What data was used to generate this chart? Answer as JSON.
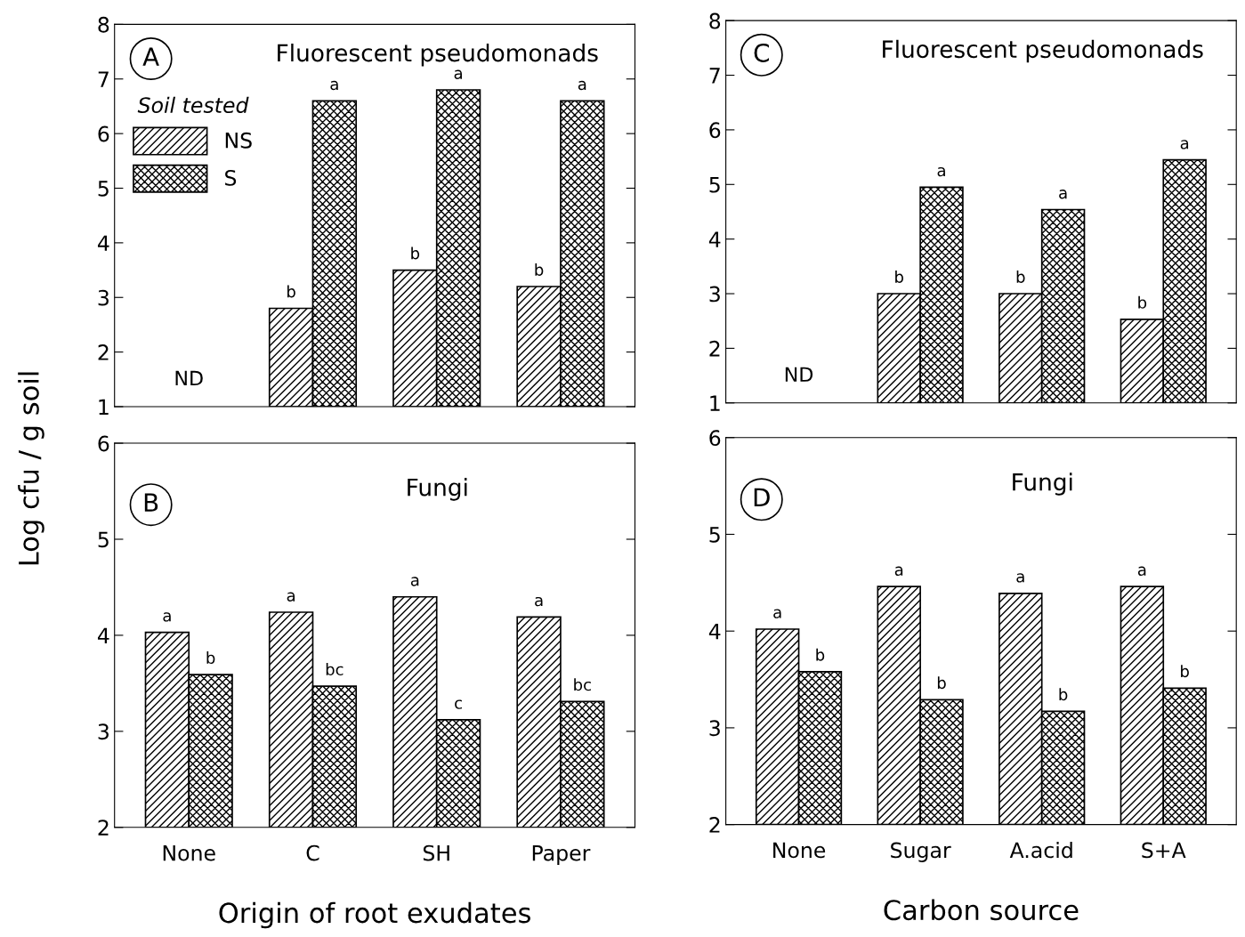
{
  "chart_data": [
    {
      "type": "bar",
      "title": "Fluorescent pseudomonads",
      "ylabel": "Log cfu / g soil",
      "legend_title": "Soil tested",
      "legend": "top left",
      "tick_labels": "y",
      "grid": false,
      "categories": [
        null,
        null,
        null,
        null
      ],
      "ylim": [
        1,
        8
      ],
      "yticks": [
        1,
        2,
        3,
        4,
        5,
        6,
        7,
        8
      ],
      "series": [
        {
          "name": "NS",
          "color": "#000000",
          "values": [
            null,
            2.8,
            3.5,
            3.2
          ],
          "value_labels": [
            null,
            "b",
            "b",
            "b"
          ]
        },
        {
          "name": "S",
          "color": "#000000",
          "values": [
            null,
            6.6,
            6.8,
            6.6
          ],
          "value_labels": [
            null,
            "a",
            "a",
            "a"
          ]
        }
      ],
      "annotations": [
        "A",
        "ND"
      ]
    },
    {
      "type": "bar",
      "title": "Fungi",
      "xlabel": "Origin of root exudates",
      "grid": false,
      "categories": [
        "None",
        "C",
        "SH",
        "Paper"
      ],
      "ylim": [
        2,
        6
      ],
      "yticks": [
        2,
        3,
        4,
        5,
        6
      ],
      "series": [
        {
          "color": "#000000",
          "values": [
            4.03,
            4.24,
            4.4,
            4.19
          ],
          "value_labels": [
            "a",
            "a",
            "a",
            "a"
          ]
        },
        {
          "color": "#000000",
          "values": [
            3.59,
            3.47,
            3.12,
            3.31
          ],
          "value_labels": [
            "b",
            "bc",
            "c",
            "bc"
          ]
        }
      ],
      "annotations": [
        "B"
      ]
    },
    {
      "type": "bar",
      "title": "Fluorescent pseudomonads",
      "tick_labels": "y",
      "grid": false,
      "categories": [
        null,
        null,
        null,
        null
      ],
      "ylim": [
        1,
        8
      ],
      "yticks": [
        1,
        2,
        3,
        4,
        5,
        6,
        7,
        8
      ],
      "series": [
        {
          "color": "#000000",
          "values": [
            null,
            3.0,
            3.0,
            2.53
          ],
          "value_labels": [
            null,
            "b",
            "b",
            "b"
          ]
        },
        {
          "color": "#000000",
          "values": [
            null,
            4.95,
            4.54,
            5.45
          ],
          "value_labels": [
            null,
            "a",
            "a",
            "a"
          ]
        }
      ],
      "annotations": [
        "C",
        "ND"
      ]
    },
    {
      "type": "bar",
      "title": "Fungi",
      "xlabel": "Carbon source",
      "grid": false,
      "categories": [
        "None",
        "Sugar",
        "A.acid",
        "S+A"
      ],
      "ylim": [
        2,
        6
      ],
      "yticks": [
        2,
        3,
        4,
        5,
        6
      ],
      "series": [
        {
          "color": "#000000",
          "values": [
            4.02,
            4.46,
            4.39,
            4.46
          ],
          "value_labels": [
            "a",
            "a",
            "a",
            "a"
          ]
        },
        {
          "color": "#000000",
          "values": [
            3.58,
            3.29,
            3.17,
            3.41
          ],
          "value_labels": [
            "b",
            "b",
            "b",
            "b"
          ]
        }
      ],
      "annotations": [
        "D"
      ]
    }
  ]
}
